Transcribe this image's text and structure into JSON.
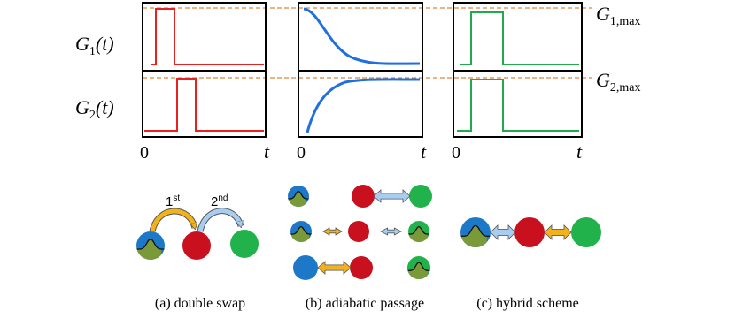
{
  "plots": {
    "y_labels": [
      {
        "base": "G",
        "sub": "1",
        "tail": "(t)"
      },
      {
        "base": "G",
        "sub": "2",
        "tail": "(t)"
      }
    ],
    "x_origin_labels": [
      "0",
      "0",
      "0"
    ],
    "x_axis_labels": [
      "t",
      "t",
      "t"
    ],
    "level_labels": [
      {
        "base": "G",
        "sub": "1,max"
      },
      {
        "base": "G",
        "sub": "2,max"
      }
    ]
  },
  "schemes": {
    "double_swap_steps": [
      {
        "base": "1",
        "sup": "st"
      },
      {
        "base": "2",
        "sup": "nd"
      }
    ]
  },
  "captions": [
    "(a) double swap",
    "(b) adiabatic passage",
    "(c) hybrid scheme"
  ]
}
